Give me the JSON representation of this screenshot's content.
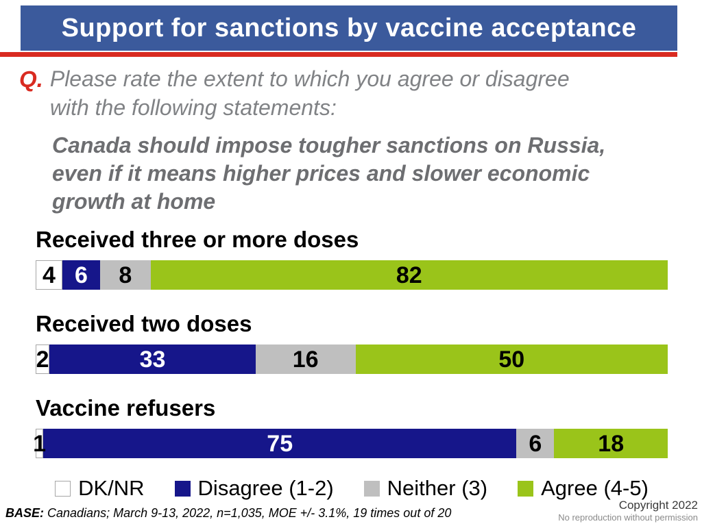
{
  "header": {
    "title": "Support for sanctions by vaccine acceptance",
    "banner_color": "#3B5A9C",
    "rule_color": "#D92B21"
  },
  "question": {
    "prefix": "Q.",
    "text": "Please rate the extent to which you agree or disagree\nwith the following statements:",
    "statement": "Canada should impose tougher sanctions on Russia,\neven if it means higher prices and slower economic\ngrowth at home"
  },
  "chart_data": {
    "type": "bar",
    "orientation": "horizontal",
    "stacked": true,
    "unit": "percent",
    "value_labels": true,
    "grid": false,
    "xlim": [
      0,
      100
    ],
    "legend_position": "bottom",
    "categories": [
      "Received three or more doses",
      "Received two doses",
      "Vaccine refusers"
    ],
    "series": [
      {
        "name": "DK/NR",
        "color": "#FFFFFF",
        "text_color": "#000000",
        "bordered": true,
        "values": [
          4,
          2,
          1
        ]
      },
      {
        "name": "Disagree (1-2)",
        "color": "#16168A",
        "text_color": "#FFFFFF",
        "bordered": false,
        "values": [
          6,
          33,
          75
        ]
      },
      {
        "name": "Neither (3)",
        "color": "#BFBFBF",
        "text_color": "#000000",
        "bordered": false,
        "values": [
          8,
          16,
          6
        ]
      },
      {
        "name": "Agree (4-5)",
        "color": "#9AC41A",
        "text_color": "#000000",
        "bordered": false,
        "values": [
          82,
          50,
          18
        ]
      }
    ]
  },
  "footer": {
    "base_label": "BASE:",
    "base_text": " Canadians; March 9-13, 2022, n=1,035, MOE +/- 3.1%, 19 times out of 20",
    "copyright": "Copyright 2022",
    "note": "No reproduction without permission"
  }
}
